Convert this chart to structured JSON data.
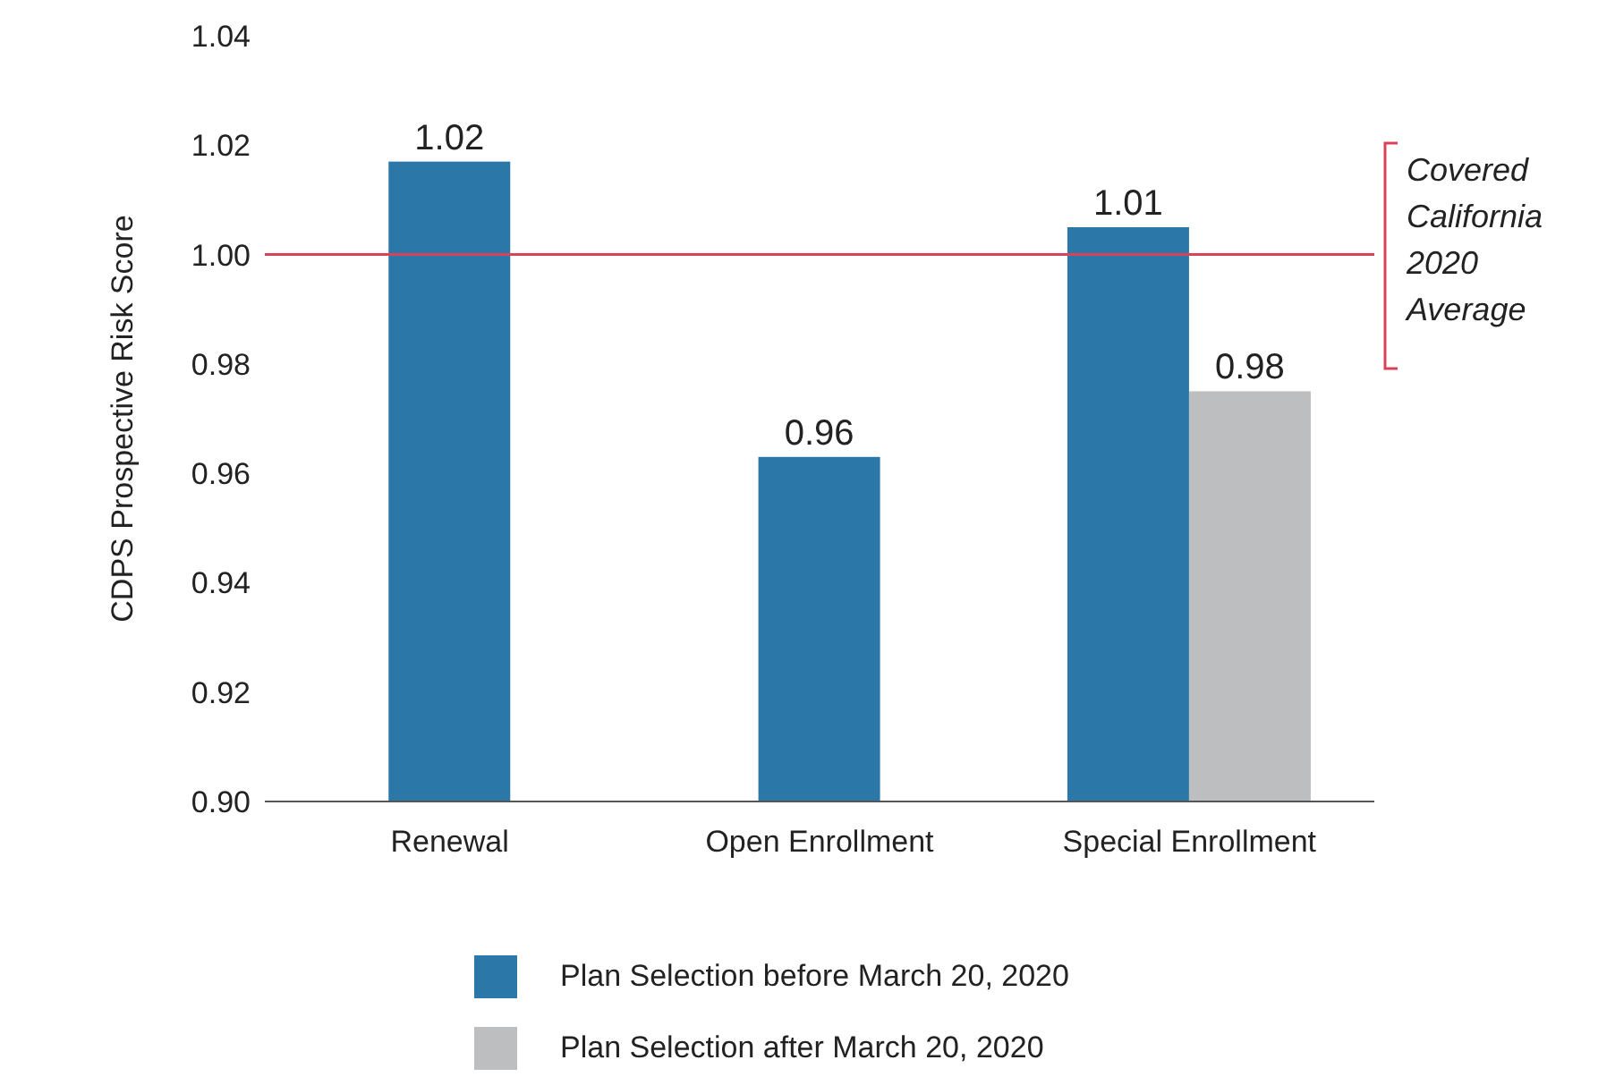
{
  "chart_data": {
    "type": "bar",
    "ylabel": "CDPS Prospective Risk Score",
    "categories": [
      "Renewal",
      "Open Enrollment",
      "Special Enrollment"
    ],
    "series": [
      {
        "name": "Plan Selection before March 20, 2020",
        "color": "#2b78a8",
        "values": [
          1.017,
          0.963,
          1.005
        ],
        "value_labels": [
          "1.02",
          "0.96",
          "1.01"
        ]
      },
      {
        "name": "Plan Selection after March 20, 2020",
        "color": "#bcbec0",
        "values": [
          null,
          null,
          0.975
        ],
        "value_labels": [
          null,
          null,
          "0.98"
        ]
      }
    ],
    "ylim": [
      0.9,
      1.04
    ],
    "yticks": [
      {
        "value": 0.9,
        "label": "0.90"
      },
      0.92,
      0.94,
      0.96,
      0.98,
      {
        "value": 1.0,
        "label": "1.00"
      },
      1.02,
      1.04
    ],
    "grid": false,
    "legend": "bottom",
    "ref_lines": [
      {
        "axis": "y",
        "value": 1.0,
        "label": "Covered California 2020 Average",
        "color": "#d9435a"
      }
    ]
  }
}
